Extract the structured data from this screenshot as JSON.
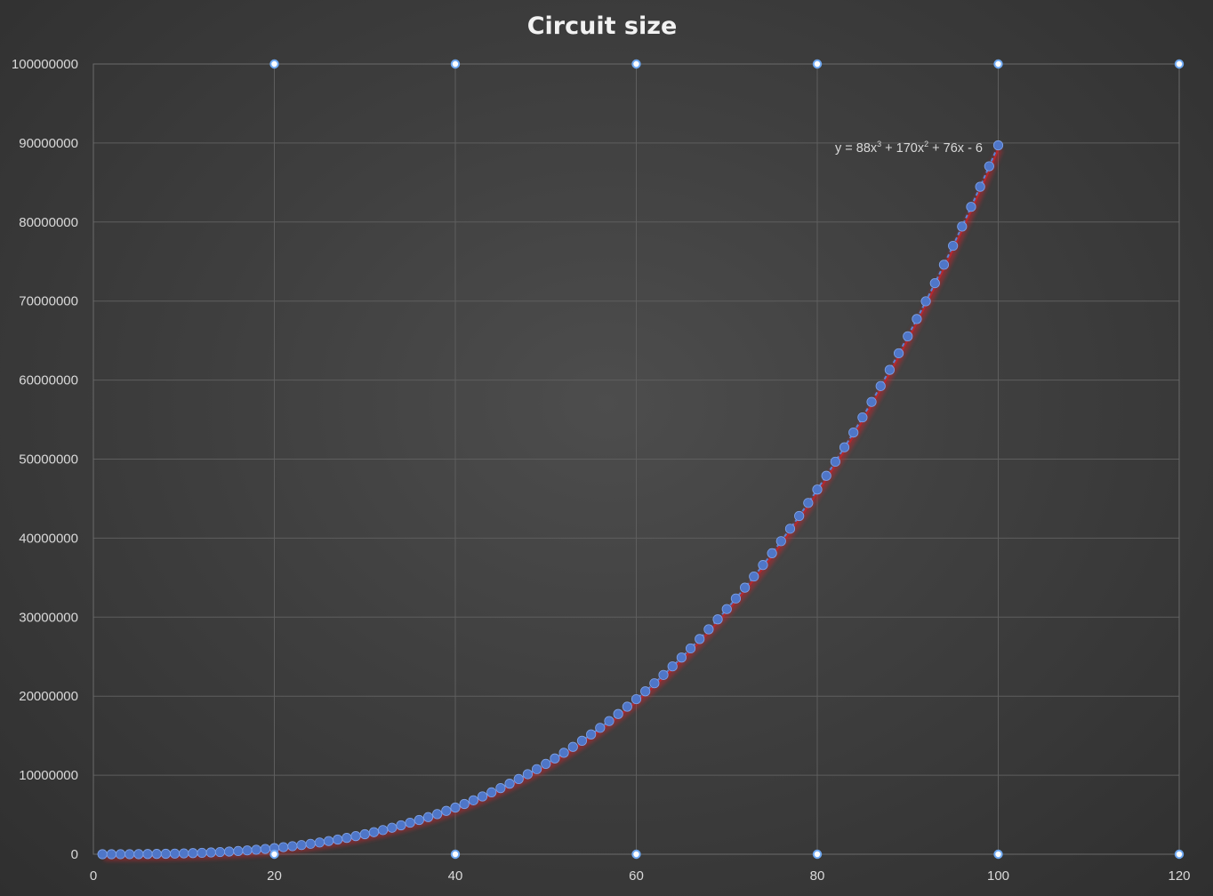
{
  "chart_data": {
    "type": "scatter",
    "title": "Circuit size",
    "xlim": [
      0,
      120
    ],
    "ylim": [
      0,
      100000000
    ],
    "x_ticks": [
      0,
      20,
      40,
      60,
      80,
      100,
      120
    ],
    "y_ticks": [
      0,
      10000000,
      20000000,
      30000000,
      40000000,
      50000000,
      60000000,
      70000000,
      80000000,
      90000000,
      100000000
    ],
    "grid": true,
    "legend": "none",
    "series": [
      {
        "kind": "points",
        "x_start": 1,
        "x_end": 100,
        "x_step": 1,
        "y_formula": "88x^3 + 170x^2 + 76x - 6",
        "color": "#4f76c8"
      },
      {
        "kind": "trendline",
        "type": "polynomial",
        "degree": 3,
        "coefficients": [
          88,
          170,
          76,
          -6
        ],
        "color": "#c0262d"
      }
    ],
    "trendline_label": {
      "prefix": "y = 88x",
      "sup1": "3",
      "mid": " + 170x",
      "sup2": "2",
      "suffix": " + 76x - 6"
    },
    "axis_markers": {
      "x_values": [
        20,
        40,
        60,
        80,
        100,
        120
      ],
      "color": "#6fa8f0"
    }
  }
}
